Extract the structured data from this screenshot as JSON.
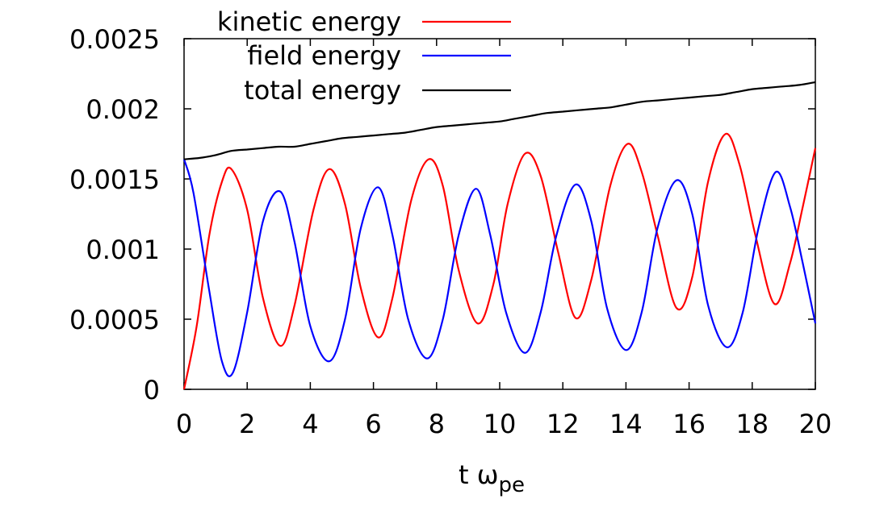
{
  "chart_data": {
    "type": "line",
    "xlabel": "t ω",
    "xlabel_sub": "pe",
    "ylabel": "",
    "xlim": [
      0,
      20
    ],
    "ylim": [
      0,
      0.0025
    ],
    "x_ticks": [
      "0",
      "2",
      "4",
      "6",
      "8",
      "10",
      "12",
      "14",
      "16",
      "18",
      "20"
    ],
    "y_ticks": [
      "0",
      "0.0005",
      "0.001",
      "0.0015",
      "0.002",
      "0.0025"
    ],
    "grid": false,
    "legend_position": "top-right",
    "series": [
      {
        "name": "kinetic energy",
        "color": "#ff0000",
        "x": [
          0,
          0.4,
          0.8,
          1.2,
          1.5,
          2.0,
          2.5,
          3.05,
          3.5,
          4.1,
          4.6,
          5.1,
          5.6,
          6.15,
          6.6,
          7.2,
          7.75,
          8.2,
          8.7,
          9.3,
          9.8,
          10.25,
          10.8,
          11.3,
          11.85,
          12.4,
          12.9,
          13.5,
          14.05,
          14.5,
          15.0,
          15.6,
          16.1,
          16.6,
          17.15,
          17.6,
          18.1,
          18.7,
          19.2,
          19.6,
          20.0
        ],
        "y": [
          0,
          0.00045,
          0.0011,
          0.00148,
          0.00157,
          0.00128,
          0.00065,
          0.00031,
          0.0006,
          0.00128,
          0.00157,
          0.00132,
          0.00072,
          0.00037,
          0.00065,
          0.00135,
          0.00164,
          0.00145,
          0.00085,
          0.00047,
          0.00075,
          0.00132,
          0.00168,
          0.00152,
          0.00098,
          0.00051,
          0.00078,
          0.00145,
          0.00175,
          0.00155,
          0.0011,
          0.00058,
          0.0008,
          0.00148,
          0.00182,
          0.0016,
          0.0011,
          0.00061,
          0.0009,
          0.0013,
          0.00172
        ]
      },
      {
        "name": "field energy",
        "color": "#0000ff",
        "x": [
          0,
          0.3,
          0.8,
          1.2,
          1.55,
          2.0,
          2.5,
          3.05,
          3.5,
          4.0,
          4.6,
          5.1,
          5.6,
          6.15,
          6.6,
          7.1,
          7.7,
          8.2,
          8.7,
          9.25,
          9.7,
          10.2,
          10.8,
          11.3,
          11.8,
          12.4,
          12.9,
          13.4,
          14.0,
          14.5,
          15.0,
          15.6,
          16.1,
          16.6,
          17.2,
          17.7,
          18.2,
          18.75,
          19.2,
          19.6,
          20.0
        ],
        "y": [
          0.00164,
          0.0014,
          0.0007,
          0.0002,
          0.00012,
          0.00055,
          0.0012,
          0.00141,
          0.00105,
          0.00045,
          0.0002,
          0.0005,
          0.00115,
          0.00144,
          0.0011,
          0.0005,
          0.00022,
          0.0005,
          0.0011,
          0.00143,
          0.0011,
          0.00055,
          0.00026,
          0.00055,
          0.0011,
          0.00146,
          0.0012,
          0.00058,
          0.00028,
          0.00055,
          0.00115,
          0.00149,
          0.00125,
          0.0006,
          0.0003,
          0.00055,
          0.00115,
          0.00155,
          0.0013,
          0.0009,
          0.00047
        ]
      },
      {
        "name": "total energy",
        "color": "#000000",
        "x": [
          0,
          0.5,
          1,
          1.5,
          2,
          2.5,
          3,
          3.5,
          4,
          4.5,
          5,
          5.5,
          6,
          6.5,
          7,
          7.5,
          8,
          8.5,
          9,
          9.5,
          10,
          10.5,
          11,
          11.5,
          12,
          12.5,
          13,
          13.5,
          14,
          14.5,
          15,
          15.5,
          16,
          16.5,
          17,
          17.5,
          18,
          18.5,
          19,
          19.5,
          20
        ],
        "y": [
          0.00164,
          0.00165,
          0.00167,
          0.0017,
          0.00171,
          0.00172,
          0.00173,
          0.00173,
          0.00175,
          0.00177,
          0.00179,
          0.0018,
          0.00181,
          0.00182,
          0.00183,
          0.00185,
          0.00187,
          0.00188,
          0.00189,
          0.0019,
          0.00191,
          0.00193,
          0.00195,
          0.00197,
          0.00198,
          0.00199,
          0.002,
          0.00201,
          0.00203,
          0.00205,
          0.00206,
          0.00207,
          0.00208,
          0.00209,
          0.0021,
          0.00212,
          0.00214,
          0.00215,
          0.00216,
          0.00217,
          0.00219
        ]
      }
    ]
  }
}
